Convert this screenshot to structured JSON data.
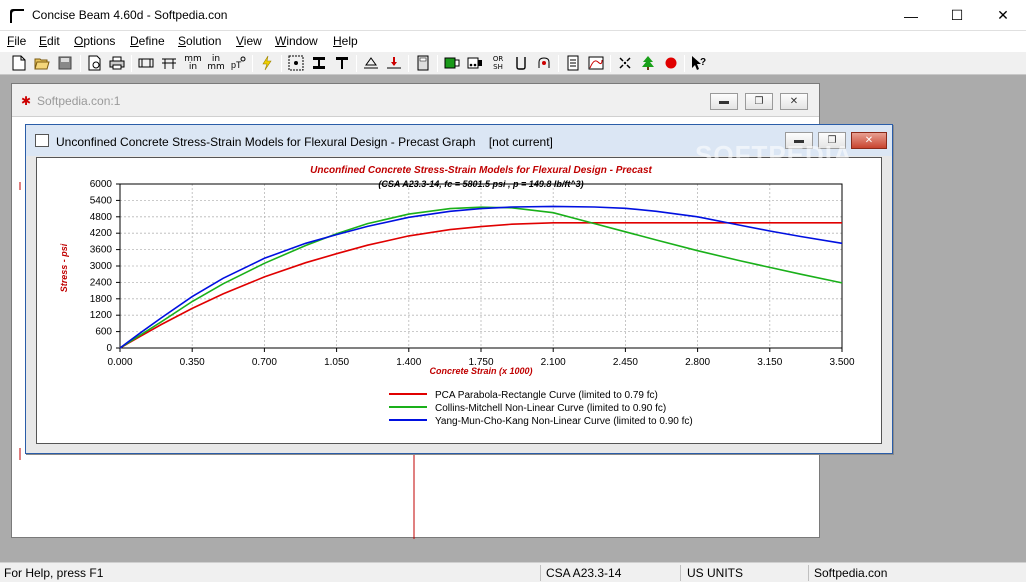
{
  "window": {
    "title": "Concise Beam 4.60d - Softpedia.con",
    "minimize_glyph": "—",
    "maximize_glyph": "☐",
    "close_glyph": "✕"
  },
  "menu": [
    {
      "label": "File",
      "acc": "F",
      "rest": "ile"
    },
    {
      "label": "Edit",
      "acc": "E",
      "rest": "dit"
    },
    {
      "label": "Options",
      "acc": "O",
      "rest": "ptions"
    },
    {
      "label": "Define",
      "acc": "D",
      "rest": "efine"
    },
    {
      "label": "Solution",
      "acc": "S",
      "rest": "olution"
    },
    {
      "label": "View",
      "acc": "V",
      "rest": "iew"
    },
    {
      "label": "Window",
      "acc": "W",
      "rest": "indow"
    },
    {
      "label": "Help",
      "acc": "H",
      "rest": "elp"
    }
  ],
  "toolbar": {
    "tool_mm_in": "mm\nin",
    "tool_in_mm": "in\nmm",
    "tool_or_sh": "OR\nSH"
  },
  "child_window_1": {
    "title": "Softpedia.con:1"
  },
  "graph_window": {
    "title": "Unconfined Concrete Stress-Strain Models for Flexural Design - Precast Graph    [not current]"
  },
  "watermark": "SOFTPEDIA",
  "chart_data": {
    "type": "line",
    "title": "Unconfined Concrete Stress-Strain Models for Flexural Design - Precast",
    "subtitle": "(CSA A23.3-14, fc = 5801.5 psi , p = 149.8 lb/ft^3)",
    "xlabel": "Concrete Strain (x 1000)",
    "ylabel": "Stress - psi",
    "xlim": [
      0,
      3.5
    ],
    "ylim": [
      0,
      6000
    ],
    "x_ticks": [
      "0.000",
      "0.350",
      "0.700",
      "1.050",
      "1.400",
      "1.750",
      "2.100",
      "2.450",
      "2.800",
      "3.150",
      "3.500"
    ],
    "y_ticks": [
      "0",
      "600",
      "1200",
      "1800",
      "2400",
      "3000",
      "3600",
      "4200",
      "4800",
      "5400",
      "6000"
    ],
    "grid": true,
    "legend_position": "bottom-center",
    "series": [
      {
        "name": "PCA Parabola-Rectangle Curve (limited to 0.79 fc)",
        "color": "#e00000",
        "x": [
          0,
          0.1,
          0.2,
          0.35,
          0.5,
          0.7,
          0.9,
          1.05,
          1.2,
          1.4,
          1.6,
          1.75,
          1.9,
          2.1,
          2.45,
          2.8,
          3.15,
          3.5
        ],
        "y": [
          0,
          430,
          860,
          1450,
          1980,
          2600,
          3120,
          3450,
          3760,
          4100,
          4330,
          4440,
          4530,
          4580,
          4580,
          4580,
          4580,
          4580
        ]
      },
      {
        "name": "Collins-Mitchell Non-Linear Curve (limited to 0.90 fc)",
        "color": "#1ab01a",
        "x": [
          0,
          0.1,
          0.2,
          0.35,
          0.5,
          0.7,
          0.9,
          1.05,
          1.2,
          1.4,
          1.6,
          1.75,
          1.9,
          2.1,
          2.3,
          2.45,
          2.6,
          2.8,
          3.0,
          3.15,
          3.3,
          3.5
        ],
        "y": [
          0,
          480,
          960,
          1700,
          2350,
          3100,
          3750,
          4180,
          4550,
          4900,
          5100,
          5150,
          5130,
          4950,
          4550,
          4250,
          3950,
          3560,
          3200,
          2950,
          2700,
          2380
        ]
      },
      {
        "name": "Yang-Mun-Cho-Kang Non-Linear Curve (limited to 0.90 fc)",
        "color": "#0010e0",
        "x": [
          0,
          0.1,
          0.2,
          0.35,
          0.5,
          0.7,
          0.9,
          1.05,
          1.2,
          1.4,
          1.6,
          1.75,
          1.9,
          2.1,
          2.3,
          2.45,
          2.6,
          2.8,
          3.0,
          3.15,
          3.3,
          3.5
        ],
        "y": [
          0,
          560,
          1100,
          1880,
          2550,
          3280,
          3830,
          4150,
          4450,
          4780,
          5000,
          5100,
          5160,
          5180,
          5160,
          5110,
          5000,
          4800,
          4500,
          4280,
          4080,
          3830
        ]
      }
    ]
  },
  "status": {
    "help": "For Help, press F1",
    "code": "CSA A23.3-14",
    "units": "US UNITS",
    "brand": "Softpedia.con"
  }
}
